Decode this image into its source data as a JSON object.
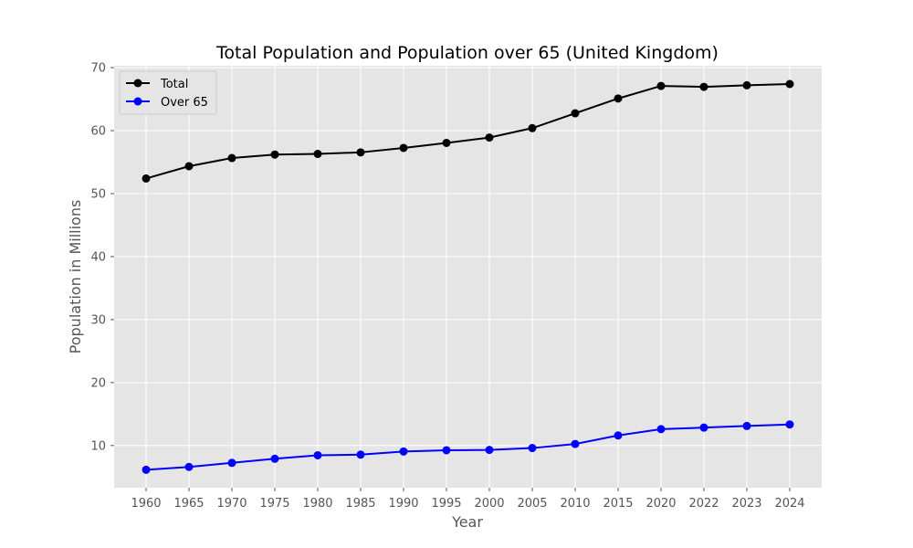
{
  "chart_data": {
    "type": "line",
    "title": "Total Population and Population over 65 (United Kingdom)",
    "xlabel": "Year",
    "ylabel": "Population in Millions",
    "categories": [
      "1960",
      "1965",
      "1970",
      "1975",
      "1980",
      "1985",
      "1990",
      "1995",
      "2000",
      "2005",
      "2010",
      "2015",
      "2020",
      "2022",
      "2023",
      "2024"
    ],
    "ylim": [
      3.3,
      70.3
    ],
    "yticks": [
      "10",
      "20",
      "30",
      "40",
      "50",
      "60",
      "70"
    ],
    "grid": true,
    "legend_position": "top-left",
    "series": [
      {
        "name": "Total",
        "color": "#000000",
        "values": [
          52.4,
          54.35,
          55.65,
          56.2,
          56.3,
          56.55,
          57.25,
          58.05,
          58.9,
          60.4,
          62.75,
          65.1,
          67.1,
          66.95,
          67.2,
          67.4
        ]
      },
      {
        "name": "Over 65",
        "color": "#0000ff",
        "values": [
          6.15,
          6.6,
          7.25,
          7.9,
          8.45,
          8.55,
          9.05,
          9.25,
          9.3,
          9.6,
          10.25,
          11.6,
          12.6,
          12.85,
          13.1,
          13.35
        ]
      }
    ],
    "style": {
      "plot_background": "#e5e5e5",
      "grid_color": "#ffffff",
      "text_color": "#555555"
    }
  }
}
